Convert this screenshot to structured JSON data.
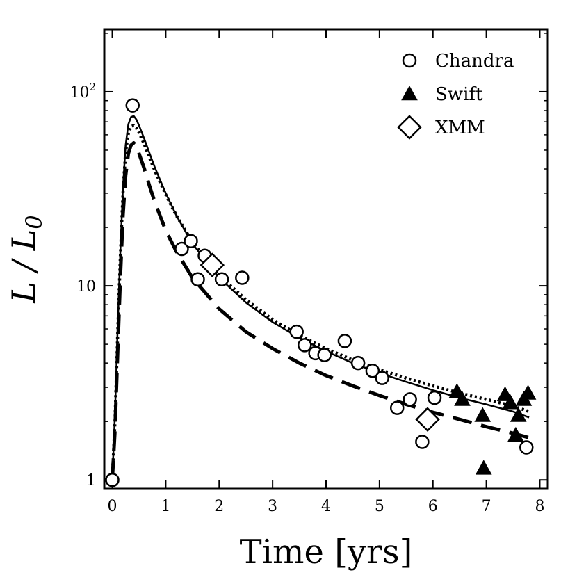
{
  "chart_data": {
    "type": "scatter",
    "title": "",
    "xlabel": "Time [yrs]",
    "ylabel_base": "L / L",
    "ylabel_sub": "0",
    "yscale": "log",
    "xlim": [
      -0.15,
      8.15
    ],
    "ylim": [
      0.9,
      210
    ],
    "xticks": [
      0,
      1,
      2,
      3,
      4,
      5,
      6,
      7,
      8
    ],
    "xtick_labels": [
      "0",
      "1",
      "2",
      "3",
      "4",
      "5",
      "6",
      "7",
      "8"
    ],
    "yticks": [
      {
        "value": 1,
        "base": "1",
        "exp": ""
      },
      {
        "value": 10,
        "base": "10",
        "exp": ""
      },
      {
        "value": 100,
        "base": "10",
        "exp": "2"
      }
    ],
    "legend_position": "top-right",
    "legend": [
      {
        "label": "Chandra",
        "marker": "open-circle"
      },
      {
        "label": "Swift",
        "marker": "filled-triangle"
      },
      {
        "label": "XMM",
        "marker": "open-diamond"
      }
    ],
    "series": [
      {
        "name": "Chandra",
        "marker": "open-circle",
        "x": [
          0.0,
          0.38,
          1.3,
          1.47,
          1.6,
          1.73,
          2.05,
          2.43,
          3.45,
          3.6,
          3.8,
          3.97,
          4.35,
          4.6,
          4.87,
          5.05,
          5.33,
          5.57,
          5.8,
          6.03,
          7.75
        ],
        "y": [
          1.0,
          85,
          15.5,
          17.0,
          10.8,
          14.3,
          10.8,
          11.0,
          5.8,
          4.95,
          4.5,
          4.4,
          5.2,
          4.0,
          3.65,
          3.35,
          2.35,
          2.6,
          1.57,
          2.65,
          1.47
        ]
      },
      {
        "name": "Swift",
        "marker": "filled-triangle",
        "x": [
          6.45,
          6.55,
          6.93,
          6.95,
          7.35,
          7.45,
          7.55,
          7.6,
          7.7,
          7.78
        ],
        "y": [
          2.85,
          2.6,
          2.15,
          1.15,
          2.75,
          2.5,
          1.7,
          2.15,
          2.6,
          2.8
        ]
      },
      {
        "name": "XMM",
        "marker": "open-diamond",
        "x": [
          1.87,
          5.9
        ],
        "y": [
          12.8,
          2.05
        ]
      }
    ],
    "curves": [
      {
        "name": "solid model",
        "style": "solid",
        "x": [
          0.0,
          0.05,
          0.1,
          0.15,
          0.2,
          0.25,
          0.3,
          0.35,
          0.4,
          0.45,
          0.5,
          0.6,
          0.7,
          0.8,
          1.0,
          1.2,
          1.5,
          2.0,
          2.5,
          3.0,
          3.5,
          4.0,
          4.5,
          5.0,
          5.5,
          6.0,
          6.5,
          7.0,
          7.5,
          7.8
        ],
        "y": [
          1.0,
          2.2,
          6.0,
          15.0,
          32.0,
          53.0,
          68.0,
          74.0,
          75.0,
          72.0,
          67.0,
          57.0,
          48.0,
          40.5,
          30.0,
          23.0,
          16.5,
          11.0,
          8.2,
          6.5,
          5.4,
          4.6,
          4.0,
          3.55,
          3.2,
          2.9,
          2.65,
          2.45,
          2.25,
          2.1
        ]
      },
      {
        "name": "dotted model",
        "style": "dotted",
        "x": [
          0.0,
          0.05,
          0.1,
          0.15,
          0.2,
          0.25,
          0.3,
          0.35,
          0.4,
          0.45,
          0.5,
          0.6,
          0.7,
          0.8,
          1.0,
          1.2,
          1.5,
          2.0,
          2.5,
          3.0,
          3.5,
          4.0,
          4.5,
          5.0,
          5.5,
          6.0,
          6.5,
          7.0,
          7.5,
          7.8
        ],
        "y": [
          1.0,
          2.0,
          5.5,
          14.0,
          30.0,
          49.0,
          61.0,
          66.0,
          67.0,
          65.0,
          61.5,
          53.5,
          45.5,
          39.0,
          29.5,
          23.0,
          16.8,
          11.3,
          8.5,
          6.7,
          5.55,
          4.75,
          4.15,
          3.7,
          3.35,
          3.05,
          2.8,
          2.6,
          2.4,
          2.25
        ]
      },
      {
        "name": "dashed model",
        "style": "dashed",
        "x": [
          0.0,
          0.05,
          0.1,
          0.15,
          0.2,
          0.25,
          0.3,
          0.35,
          0.4,
          0.45,
          0.5,
          0.6,
          0.7,
          0.8,
          1.0,
          1.2,
          1.5,
          2.0,
          2.5,
          3.0,
          3.5,
          4.0,
          4.5,
          5.0,
          5.5,
          6.0,
          6.5,
          7.0,
          7.5,
          7.8
        ],
        "y": [
          1.0,
          1.8,
          4.5,
          11.0,
          23.0,
          37.0,
          48.0,
          53.0,
          54.5,
          52.5,
          48.0,
          40.0,
          32.5,
          26.8,
          19.3,
          15.0,
          11.0,
          7.6,
          5.8,
          4.75,
          4.0,
          3.45,
          3.05,
          2.72,
          2.45,
          2.23,
          2.05,
          1.88,
          1.74,
          1.65
        ]
      }
    ]
  }
}
